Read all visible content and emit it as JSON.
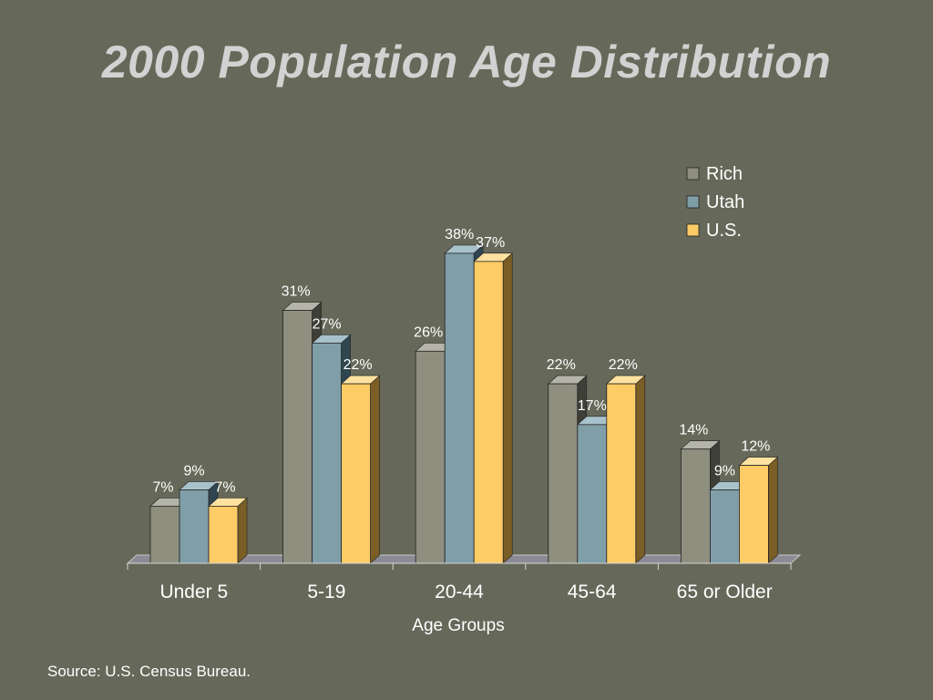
{
  "title": "2000 Population Age Distribution",
  "source": "Source: U.S. Census Bureau.",
  "colors": {
    "background": "#666859",
    "rich": "#8f8f80",
    "utah": "#7f9ea8",
    "us": "#fecc66",
    "text": "#ffffff"
  },
  "chart_data": {
    "type": "bar",
    "title": "2000 Population Age Distribution",
    "xlabel": "Age Groups",
    "ylabel": "",
    "categories": [
      "Under 5",
      "5-19",
      "20-44",
      "45-64",
      "65 or Older"
    ],
    "series": [
      {
        "name": "Rich",
        "values": [
          7,
          31,
          26,
          22,
          14
        ],
        "labels": [
          "7%",
          "31%",
          "26%",
          "22%",
          "14%"
        ]
      },
      {
        "name": "Utah",
        "values": [
          9,
          27,
          38,
          17,
          9
        ],
        "labels": [
          "9%",
          "27%",
          "38%",
          "17%",
          "9%"
        ]
      },
      {
        "name": "U.S.",
        "values": [
          7,
          22,
          37,
          22,
          12
        ],
        "labels": [
          "7%",
          "22%",
          "37%",
          "22%",
          "12%"
        ]
      }
    ],
    "ylim": [
      0,
      40
    ],
    "grid": false,
    "legend": "top-right",
    "style": "3d-clustered-bar"
  }
}
